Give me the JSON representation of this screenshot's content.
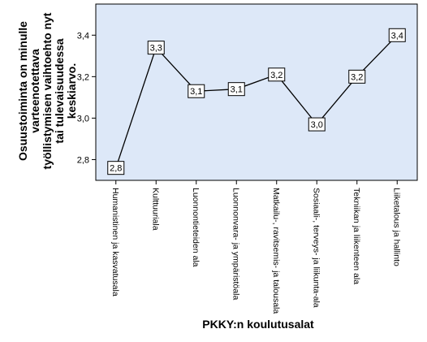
{
  "chart_data": {
    "type": "line",
    "categories": [
      "Humanistinen ja kasvatusala",
      "Kulttuuriala",
      "Luonnontieteiden ala",
      "Luonnonvara- ja ympäristöala",
      "Matkailu-, ravitsemis- ja talousala",
      "Sosiaali-, terveys- ja liikunta-ala",
      "Tekniikan ja liikenteen ala",
      "Liiketalous ja hallinto"
    ],
    "values": [
      2.76,
      3.34,
      3.13,
      3.14,
      3.21,
      2.97,
      3.2,
      3.4
    ],
    "data_labels": [
      "2,8",
      "3,3",
      "3,1",
      "3,1",
      "3,2",
      "3,0",
      "3,2",
      "3,4"
    ],
    "xlabel": "PKKY:n koulutusalat",
    "ylabel_lines": [
      "Osuustoiminta on minulle",
      "varteenotettava",
      "työllistymisen vaihtoehto nyt",
      "tai tulevaisuudessa",
      "keskiarvo."
    ],
    "ylim": [
      2.7,
      3.55
    ],
    "yticks": [
      2.8,
      3.0,
      3.2,
      3.4
    ],
    "ytick_labels": [
      "2,8",
      "3,0",
      "3,2",
      "3,4"
    ],
    "grid": false,
    "colors": {
      "plot_background": "#dde8f8",
      "line": "#000000",
      "label_box": "#ffffff"
    }
  }
}
